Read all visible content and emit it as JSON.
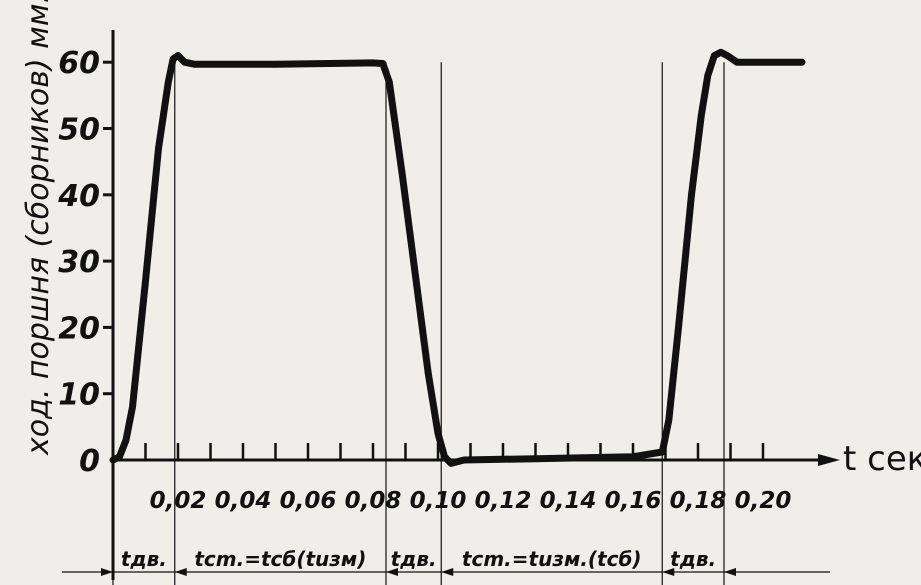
{
  "chart_data": {
    "type": "line",
    "ylabel": "ход. поршня (сборников) мм.",
    "xlabel": "t сек.",
    "xlim": [
      0,
      0.22
    ],
    "ylim": [
      0,
      60
    ],
    "xticks": [
      {
        "value": 0.02,
        "label": "0,02"
      },
      {
        "value": 0.04,
        "label": "0,04"
      },
      {
        "value": 0.06,
        "label": "0,06"
      },
      {
        "value": 0.08,
        "label": "0,08"
      },
      {
        "value": 0.1,
        "label": "0,10"
      },
      {
        "value": 0.12,
        "label": "0,12"
      },
      {
        "value": 0.14,
        "label": "0,14"
      },
      {
        "value": 0.16,
        "label": "0,16"
      },
      {
        "value": 0.18,
        "label": "0,18"
      },
      {
        "value": 0.2,
        "label": "0,20"
      }
    ],
    "yticks": [
      {
        "value": 0,
        "label": "0"
      },
      {
        "value": 10,
        "label": "10"
      },
      {
        "value": 20,
        "label": "20"
      },
      {
        "value": 30,
        "label": "30"
      },
      {
        "value": 40,
        "label": "40"
      },
      {
        "value": 50,
        "label": "50"
      },
      {
        "value": 60,
        "label": "60"
      }
    ],
    "series": [
      {
        "x": [
          0.0,
          0.002,
          0.004,
          0.006,
          0.01,
          0.014,
          0.017,
          0.0185,
          0.02,
          0.022,
          0.025,
          0.05,
          0.08,
          0.083,
          0.085,
          0.089,
          0.093,
          0.097,
          0.1,
          0.102,
          0.104,
          0.108,
          0.13,
          0.16,
          0.169,
          0.171,
          0.174,
          0.178,
          0.181,
          0.183,
          0.185,
          0.187,
          0.189,
          0.192,
          0.2,
          0.212
        ],
        "y": [
          0,
          0.5,
          3,
          8,
          27,
          47,
          57,
          60.5,
          61,
          60,
          59.7,
          59.7,
          59.9,
          59.8,
          57,
          43,
          28,
          13,
          4,
          0.5,
          -0.5,
          0,
          0.2,
          0.5,
          1.2,
          6,
          20,
          40,
          52,
          58,
          61,
          61.5,
          61,
          60,
          60,
          60
        ]
      }
    ],
    "vlines": [
      0.0,
      0.019,
      0.084,
      0.101,
      0.169,
      0.188
    ],
    "phases": [
      {
        "from": 0.0,
        "to": 0.019,
        "label": "tдв."
      },
      {
        "from": 0.019,
        "to": 0.084,
        "label": "tcm.=tсб(tuзм)"
      },
      {
        "from": 0.084,
        "to": 0.101,
        "label": "tдв."
      },
      {
        "from": 0.101,
        "to": 0.169,
        "label": "tcm.=tuзм.(tсб)"
      },
      {
        "from": 0.169,
        "to": 0.188,
        "label": "tдв."
      }
    ]
  }
}
